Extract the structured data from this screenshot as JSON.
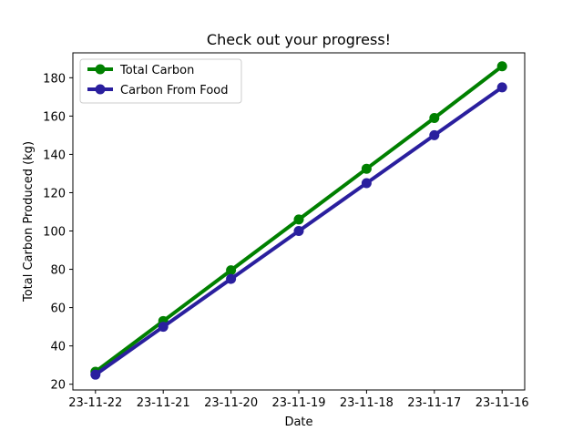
{
  "chart_data": {
    "type": "line",
    "title": "Check out your progress!",
    "xlabel": "Date",
    "ylabel": "Total Carbon Produced (kg)",
    "categories": [
      "23-11-22",
      "23-11-21",
      "23-11-20",
      "23-11-19",
      "23-11-18",
      "23-11-17",
      "23-11-16"
    ],
    "ylim": [
      17,
      193
    ],
    "yticks": [
      20,
      40,
      60,
      80,
      100,
      120,
      140,
      160,
      180
    ],
    "grid": false,
    "legend_position": "top-left",
    "series": [
      {
        "name": "Total Carbon",
        "color": "#008000",
        "values": [
          26.5,
          53,
          79.5,
          106,
          132.5,
          159,
          186
        ]
      },
      {
        "name": "Carbon From Food",
        "color": "#2a1f9e",
        "values": [
          25,
          50,
          75,
          100,
          125,
          150,
          175
        ]
      }
    ]
  }
}
